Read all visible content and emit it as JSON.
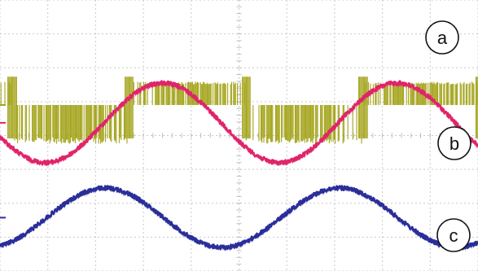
{
  "chart_data": {
    "type": "line",
    "title": "",
    "xlabel": "",
    "ylabel": "",
    "grid": true,
    "grid_divisions": {
      "x": 10,
      "y": 8
    },
    "x_range": [
      0,
      10
    ],
    "y_range": [
      -4,
      4
    ],
    "x_unit": "div",
    "y_unit": "div",
    "series": [
      {
        "label_circle": "a",
        "kind": "pwm-square",
        "color": "#a3a31a",
        "period_div": 4.9,
        "phase_div": 2.7,
        "high_level_div": 1.4,
        "low_level_div": 0.2,
        "ground_level_div": 0.9,
        "marker_color": "#a3a31a"
      },
      {
        "label_circle": "b",
        "kind": "sine",
        "color": "#e0246a",
        "period_div": 4.9,
        "peak_div": 1.55,
        "trough_div": -0.8,
        "phase_of_max_div": 3.4,
        "noise": true,
        "marker_color": "#e0246a"
      },
      {
        "label_circle": "c",
        "kind": "sine",
        "color": "#2a2f9a",
        "period_div": 4.9,
        "peak_div": -1.55,
        "trough_div": -3.3,
        "phase_of_max_div": 2.2,
        "noise": true,
        "marker_color": "#2a2f9a"
      }
    ],
    "annotations": [
      "a",
      "b",
      "c"
    ]
  }
}
